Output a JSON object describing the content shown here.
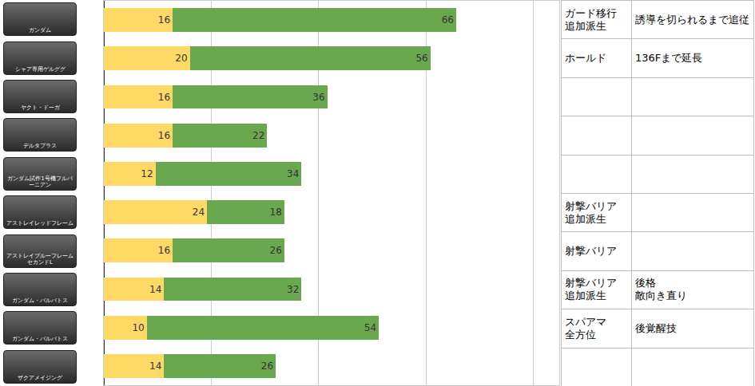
{
  "chart_data": {
    "type": "bar",
    "orientation": "horizontal",
    "stacked": true,
    "data_labels": true,
    "tick_labels": false,
    "grid": true,
    "categories": [
      "ガンダム",
      "シャア専用ゲルググ",
      "ヤクト・ドーガ",
      "デルタプラス",
      "ガンダム試作1号機フルバーニアン",
      "アストレイレッドフレーム",
      "アストレイブルーフレームセカンドL",
      "ガンダム・バルバトス",
      "ガンダム・バルバトス",
      "ザクアメイジング"
    ],
    "series": [
      {
        "color": "#ffd966",
        "values": [
          16,
          20,
          16,
          16,
          12,
          24,
          16,
          14,
          10,
          14
        ]
      },
      {
        "color": "#6aa84f",
        "values": [
          66,
          56,
          36,
          22,
          34,
          18,
          26,
          32,
          54,
          26
        ]
      }
    ],
    "xlim": [
      0,
      106
    ],
    "xticks": [
      0,
      25,
      50,
      75,
      100
    ]
  },
  "table": {
    "rows": [
      [
        "ガード移行\n追加派生",
        "誘導を切られるまで追従"
      ],
      [
        "ホールド",
        "136Fまで延長"
      ],
      [
        null,
        null
      ],
      [
        null,
        null
      ],
      [
        null,
        null
      ],
      [
        "射撃バリア\n追加派生",
        null
      ],
      [
        "射撃バリア",
        null
      ],
      [
        "射撃バリア\n追加派生",
        "後格\n敵向き直り"
      ],
      [
        "スパアマ\n全方位",
        "後覚醒技"
      ],
      [
        null,
        null
      ]
    ]
  }
}
